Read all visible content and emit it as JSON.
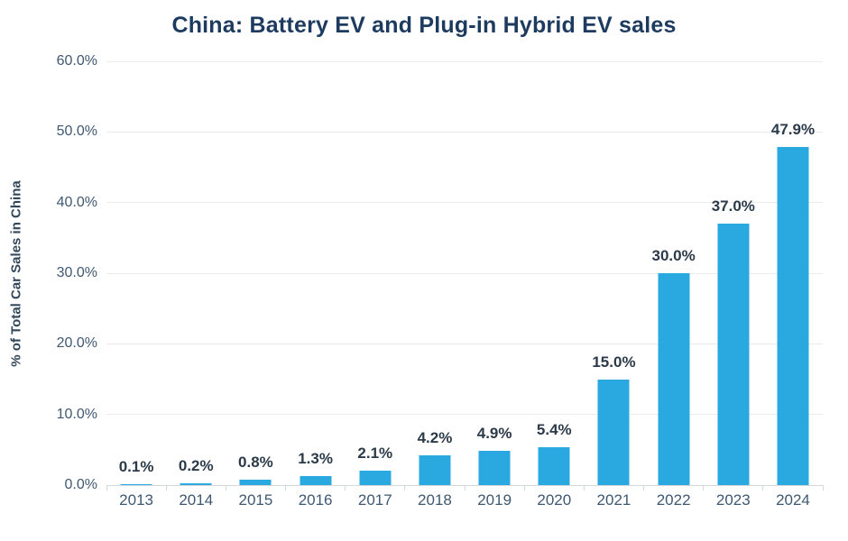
{
  "chart_data": {
    "type": "bar",
    "title": "China: Battery EV and Plug-in Hybrid EV sales",
    "xlabel": "",
    "ylabel": "% of Total Car Sales in China",
    "categories": [
      "2013",
      "2014",
      "2015",
      "2016",
      "2017",
      "2018",
      "2019",
      "2020",
      "2021",
      "2022",
      "2023",
      "2024"
    ],
    "values": [
      0.1,
      0.2,
      0.8,
      1.3,
      2.1,
      4.2,
      4.9,
      5.4,
      15.0,
      30.0,
      37.0,
      47.9
    ],
    "value_labels": [
      "0.1%",
      "0.2%",
      "0.8%",
      "1.3%",
      "2.1%",
      "4.2%",
      "4.9%",
      "5.4%",
      "15.0%",
      "30.0%",
      "37.0%",
      "47.9%"
    ],
    "ylim": [
      0,
      60
    ],
    "ytick_values": [
      0,
      10,
      20,
      30,
      40,
      50,
      60
    ],
    "ytick_labels": [
      "0.0%",
      "10.0%",
      "20.0%",
      "30.0%",
      "40.0%",
      "50.0%",
      "60.0%"
    ],
    "grid": "horizontal",
    "legend_position": "none",
    "colors": {
      "bar": "#29a9e0",
      "title": "#1d3a5f",
      "axis_text": "#3e5872",
      "data_label": "#2b3a49",
      "gridline": "#e9ebed",
      "axis_line": "#d3d8dd"
    }
  }
}
